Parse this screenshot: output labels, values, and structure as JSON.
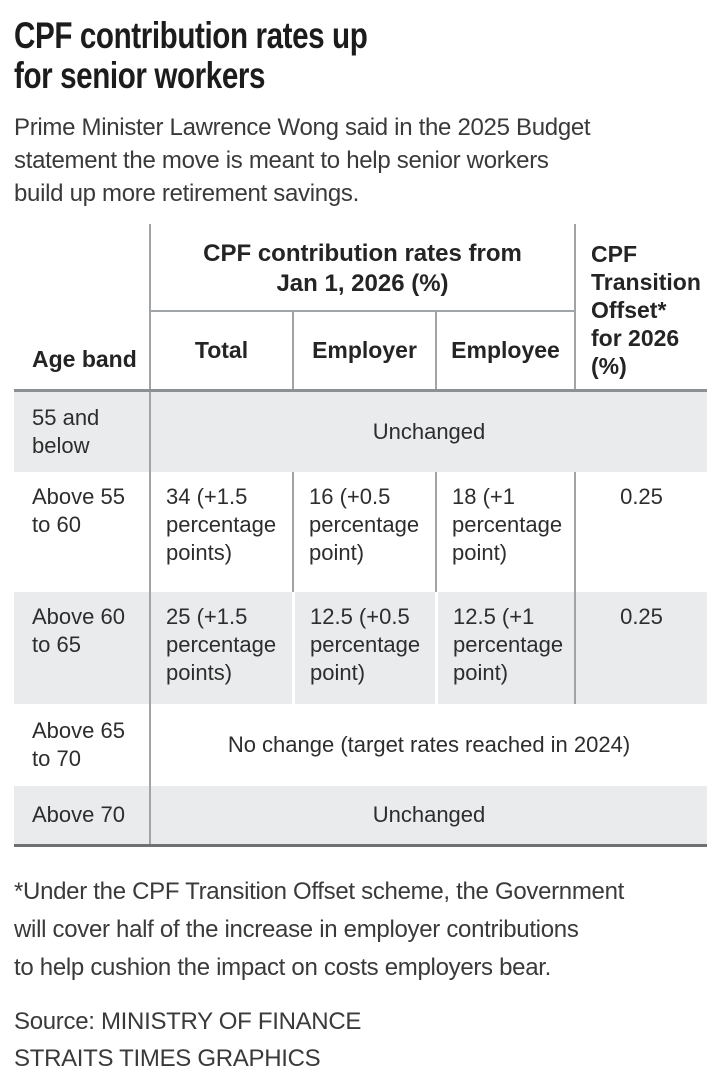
{
  "header": {
    "title": "CPF contribution rates up\nfor senior workers",
    "subtitle": "Prime Minister Lawrence Wong said in the 2025 Budget\nstatement the move is meant to help senior workers\nbuild up more retirement savings."
  },
  "table": {
    "age_band_header": "Age band",
    "group_header": "CPF contribution rates from\nJan 1, 2026 (%)",
    "sub_headers": {
      "total": "Total",
      "employer": "Employer",
      "employee": "Employee"
    },
    "offset_header": "CPF\nTransition\nOffset*\nfor 2026\n(%)",
    "rows": [
      {
        "age": "55 and\nbelow",
        "span": "Unchanged"
      },
      {
        "age": "Above 55\nto 60",
        "total": "34 (+1.5\npercentage\npoints)",
        "employer": "16 (+0.5\npercentage\npoint)",
        "employee": "18 (+1\npercentage\npoint)",
        "offset": "0.25"
      },
      {
        "age": "Above 60\nto 65",
        "total": "25 (+1.5\npercentage\npoints)",
        "employer": "12.5 (+0.5\npercentage\npoint)",
        "employee": "12.5 (+1\npercentage\npoint)",
        "offset": "0.25"
      },
      {
        "age": "Above 65\nto 70",
        "span": "No change (target rates reached in 2024)"
      },
      {
        "age": "Above 70",
        "span": "Unchanged"
      }
    ]
  },
  "footnote": "*Under the CPF Transition Offset scheme, the Government\nwill cover half of the increase in employer contributions\nto help cushion the impact on costs employers bear.",
  "source": {
    "line1": "Source: MINISTRY OF FINANCE",
    "line2": "STRAITS TIMES GRAPHICS"
  },
  "colors": {
    "shaded_row": "#e9ebec",
    "rule_gray": "#a0a4a6",
    "header_separator": "#8b9093",
    "bottom_border": "#6e7173",
    "title_text": "#1c1c1c",
    "body_text": "#2d2d2d"
  },
  "chart_data": {
    "type": "table",
    "title": "CPF contribution rates up for senior workers",
    "column_group": "CPF contribution rates from Jan 1, 2026 (%)",
    "columns": [
      "Age band",
      "Total",
      "Employer",
      "Employee",
      "CPF Transition Offset* for 2026 (%)"
    ],
    "rows": [
      {
        "age_band": "55 and below",
        "total": "Unchanged",
        "employer": "Unchanged",
        "employee": "Unchanged",
        "offset_2026": null
      },
      {
        "age_band": "Above 55 to 60",
        "total": "34 (+1.5 percentage points)",
        "employer": "16 (+0.5 percentage point)",
        "employee": "18 (+1 percentage point)",
        "offset_2026": 0.25
      },
      {
        "age_band": "Above 60 to 65",
        "total": "25 (+1.5 percentage points)",
        "employer": "12.5 (+0.5 percentage point)",
        "employee": "12.5 (+1 percentage point)",
        "offset_2026": 0.25
      },
      {
        "age_band": "Above 65 to 70",
        "total": "No change (target rates reached in 2024)",
        "employer": "No change (target rates reached in 2024)",
        "employee": "No change (target rates reached in 2024)",
        "offset_2026": null
      },
      {
        "age_band": "Above 70",
        "total": "Unchanged",
        "employer": "Unchanged",
        "employee": "Unchanged",
        "offset_2026": null
      }
    ]
  }
}
